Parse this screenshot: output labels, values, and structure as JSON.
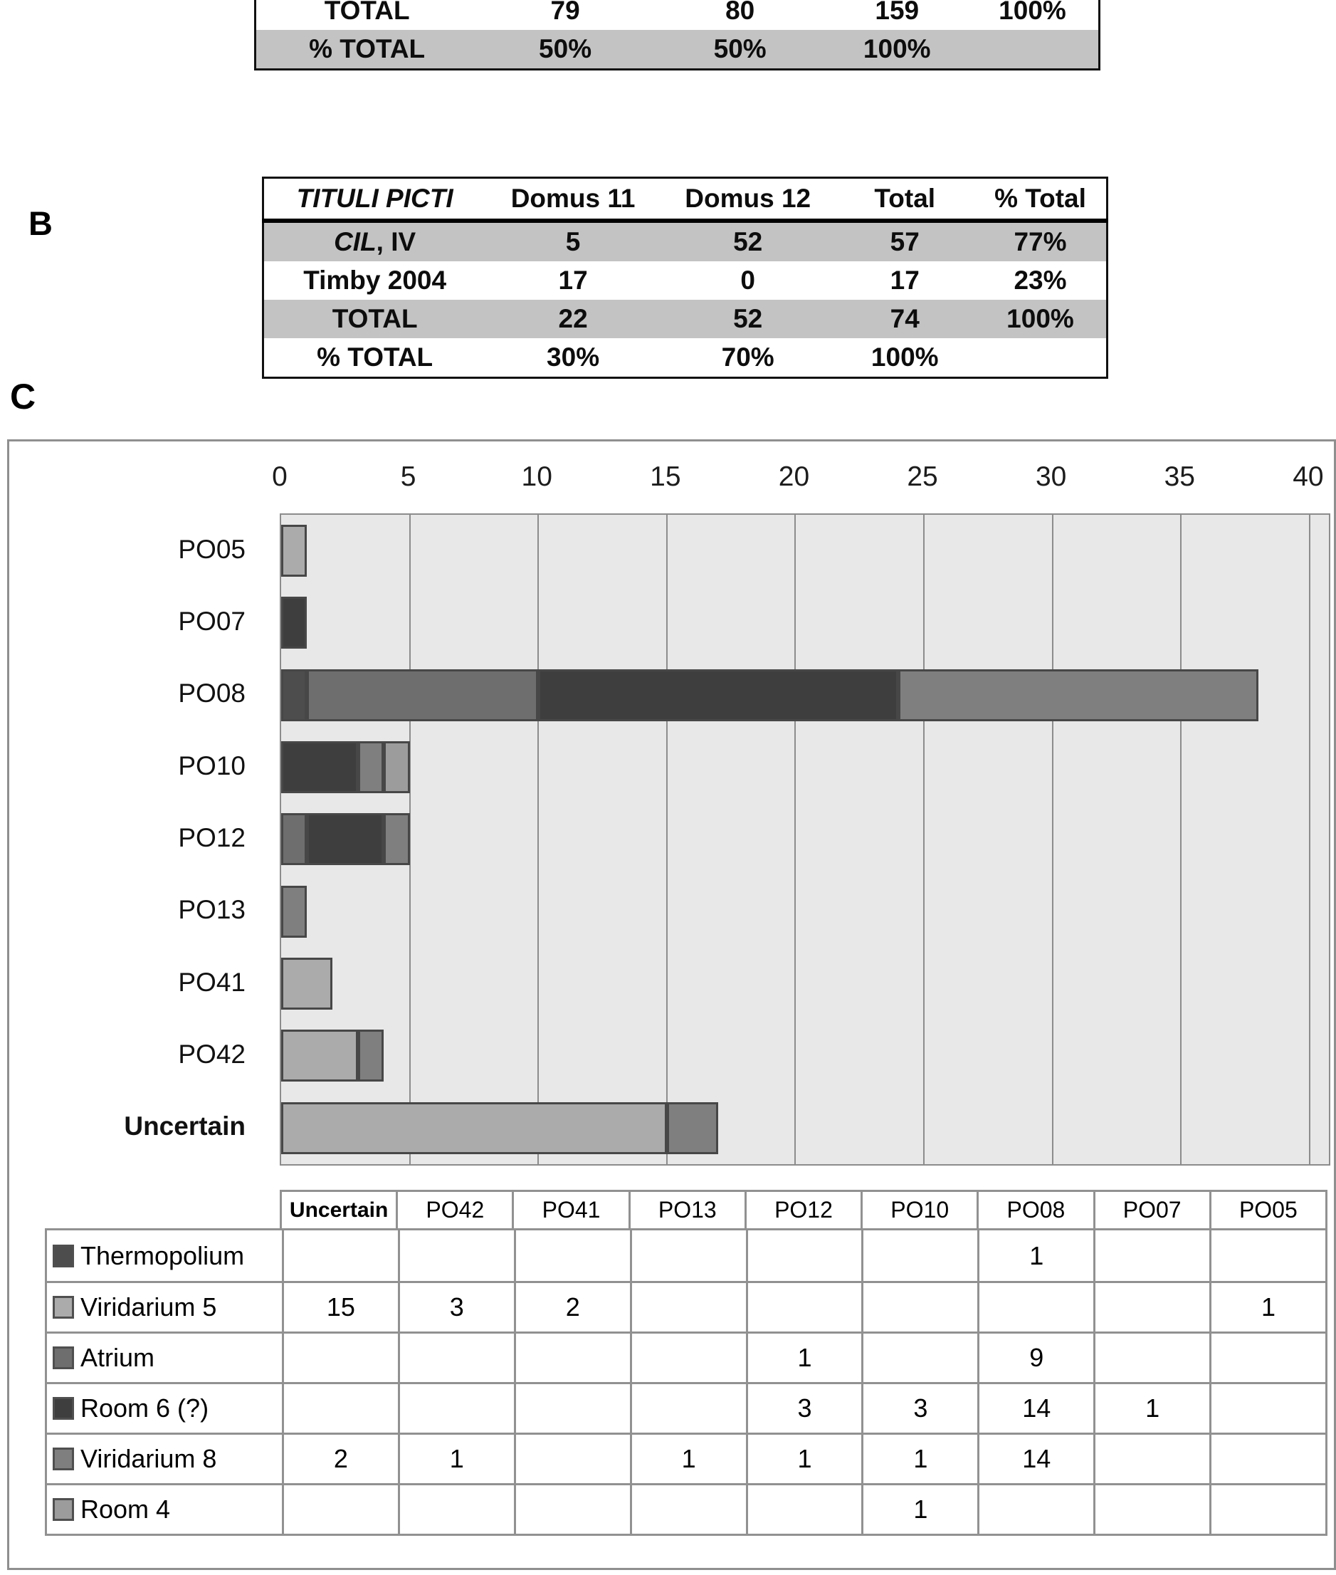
{
  "section_labels": {
    "b": "B",
    "c": "C"
  },
  "table_a": {
    "rows": [
      {
        "label_em": "",
        "label": "TOTAL",
        "values": [
          "79",
          "80",
          "159",
          "100%"
        ],
        "shaded": false
      },
      {
        "label_em": "",
        "label": "% TOTAL",
        "values": [
          "50%",
          "50%",
          "100%",
          ""
        ],
        "shaded": true
      }
    ]
  },
  "table_b": {
    "header": [
      "TITULI PICTI",
      "Domus 11",
      "Domus 12",
      "Total",
      "% Total"
    ],
    "rows": [
      {
        "label_em": "CIL",
        "label": ", IV",
        "values": [
          "5",
          "52",
          "57",
          "77%"
        ],
        "shaded": true
      },
      {
        "label_em": "",
        "label": "Timby 2004",
        "values": [
          "17",
          "0",
          "17",
          "23%"
        ],
        "shaded": false
      },
      {
        "label_em": "",
        "label": "TOTAL",
        "values": [
          "22",
          "52",
          "74",
          "100%"
        ],
        "shaded": true
      },
      {
        "label_em": "",
        "label": "% TOTAL",
        "values": [
          "30%",
          "70%",
          "100%",
          ""
        ],
        "shaded": false
      }
    ]
  },
  "chart_data": {
    "type": "bar",
    "orientation": "horizontal",
    "stacked": true,
    "title": "",
    "xlabel": "",
    "ylabel": "",
    "x_axis": {
      "min": 0,
      "max": 40,
      "tick_step": 5,
      "ticks": [
        0,
        5,
        10,
        15,
        20,
        25,
        30,
        35,
        40
      ],
      "axis_extent": 40.75
    },
    "plot_background": "#e8e8e8",
    "gridline_color": "#8c8c8c",
    "grid": true,
    "legend_position": "table-below",
    "categories": [
      {
        "label": "PO05",
        "bold": false
      },
      {
        "label": "PO07",
        "bold": false
      },
      {
        "label": "PO08",
        "bold": false
      },
      {
        "label": "PO10",
        "bold": false
      },
      {
        "label": "PO12",
        "bold": false
      },
      {
        "label": "PO13",
        "bold": false
      },
      {
        "label": "PO41",
        "bold": false
      },
      {
        "label": "PO42",
        "bold": false
      },
      {
        "label": "Uncertain",
        "bold": true
      }
    ],
    "series": [
      {
        "name": "Thermopolium",
        "color": "#4d4d4d",
        "values": {
          "PO08": 1
        }
      },
      {
        "name": "Viridarium 5",
        "color": "#ababab",
        "values": {
          "PO05": 1,
          "PO41": 2,
          "PO42": 3,
          "Uncertain": 15
        }
      },
      {
        "name": "Atrium",
        "color": "#6e6e6e",
        "values": {
          "PO08": 9,
          "PO12": 1
        }
      },
      {
        "name": "Room 6 (?)",
        "color": "#3e3e3e",
        "values": {
          "PO07": 1,
          "PO08": 14,
          "PO10": 3,
          "PO12": 3
        }
      },
      {
        "name": "Viridarium 8",
        "color": "#7f7f7f",
        "values": {
          "PO08": 14,
          "PO10": 1,
          "PO12": 1,
          "PO13": 1,
          "PO42": 1,
          "Uncertain": 2
        }
      },
      {
        "name": "Room 4",
        "color": "#9c9c9c",
        "values": {
          "PO10": 1
        }
      }
    ],
    "totals": {
      "PO05": 1,
      "PO07": 1,
      "PO08": 38,
      "PO10": 5,
      "PO12": 5,
      "PO13": 1,
      "PO41": 2,
      "PO42": 4,
      "Uncertain": 17
    },
    "data_table": {
      "columns": [
        "Uncertain",
        "PO42",
        "PO41",
        "PO13",
        "PO12",
        "PO10",
        "PO08",
        "PO07",
        "PO05"
      ],
      "rows": [
        {
          "name": "Thermopolium",
          "cells": [
            "",
            "",
            "",
            "",
            "",
            "",
            "1",
            "",
            ""
          ]
        },
        {
          "name": "Viridarium 5",
          "cells": [
            "15",
            "3",
            "2",
            "",
            "",
            "",
            "",
            "",
            "1"
          ]
        },
        {
          "name": "Atrium",
          "cells": [
            "",
            "",
            "",
            "",
            "1",
            "",
            "9",
            "",
            ""
          ]
        },
        {
          "name": "Room 6 (?)",
          "cells": [
            "",
            "",
            "",
            "",
            "3",
            "3",
            "14",
            "1",
            ""
          ]
        },
        {
          "name": "Viridarium 8",
          "cells": [
            "2",
            "1",
            "",
            "1",
            "1",
            "1",
            "14",
            "",
            ""
          ]
        },
        {
          "name": "Room 4",
          "cells": [
            "",
            "",
            "",
            "",
            "",
            "1",
            "",
            "",
            ""
          ]
        }
      ]
    }
  }
}
